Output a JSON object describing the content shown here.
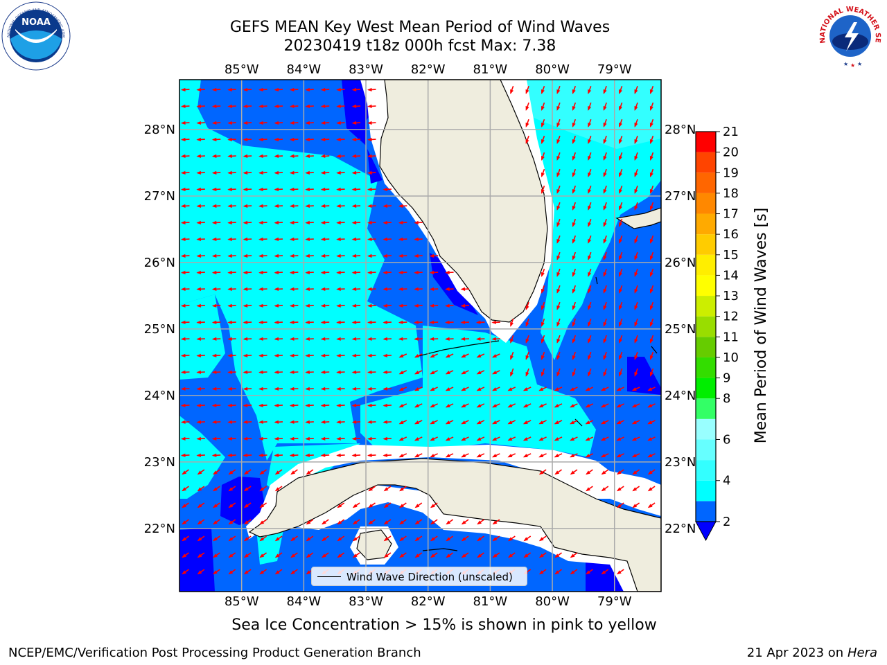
{
  "title": {
    "line1": "GEFS MEAN Key West Mean Period of Wind Waves",
    "line2": "20230419 t18z 000h fcst   Max: 7.38"
  },
  "logos": {
    "left": "NOAA",
    "left_ring": "NATIONAL OCEANIC AND ATMOSPHERIC ADMINISTRATION · U.S. DEPARTMENT OF COMMERCE",
    "right_ring": "NATIONAL WEATHER SERVICE"
  },
  "map": {
    "lon_range": [
      -86.0,
      -78.25
    ],
    "lat_range": [
      21.05,
      28.75
    ],
    "lon_ticks": [
      "85°W",
      "84°W",
      "83°W",
      "82°W",
      "81°W",
      "80°W",
      "79°W"
    ],
    "lat_ticks": [
      "22°N",
      "23°N",
      "24°N",
      "25°N",
      "26°N",
      "27°N",
      "28°N"
    ],
    "land_color": "#efedde",
    "grid": true,
    "arrow_color": "#ff0000",
    "legend_label": "Wind Wave Direction (unscaled)"
  },
  "colorbar": {
    "label": "Mean Period of Wind Waves [s]",
    "ticks": [
      "2",
      "4",
      "6",
      "8",
      "9",
      "10",
      "11",
      "12",
      "13",
      "14",
      "15",
      "16",
      "17",
      "18",
      "19",
      "20",
      "21"
    ],
    "colors": [
      "#0066ff",
      "#00ffff",
      "#33ffff",
      "#66ffff",
      "#99ffff",
      "#33ff66",
      "#00ee00",
      "#33dd00",
      "#66cc00",
      "#99dd00",
      "#ccee00",
      "#ffff00",
      "#ffee00",
      "#ffcc00",
      "#ffaa00",
      "#ff8800",
      "#ff6600",
      "#ff4400",
      "#ff0000"
    ],
    "extend_color": "#0000ff"
  },
  "chart_data": {
    "type": "heatmap",
    "title": "GEFS MEAN Key West Mean Period of Wind Waves",
    "subtitle": "20230419 t18z 000h fcst   Max: 7.38",
    "variable": "Mean Period of Wind Waves [s]",
    "max": 7.38,
    "bin_edges": [
      2,
      4,
      6,
      8,
      9,
      10,
      11,
      12,
      13,
      14,
      15,
      16,
      17,
      18,
      19,
      20,
      21
    ],
    "xlim": [
      -86.0,
      -78.25
    ],
    "ylim": [
      21.05,
      28.75
    ],
    "vectors": "Wind Wave Direction (unscaled)"
  },
  "notes": {
    "seaice": "Sea Ice Concentration > 15% is shown in pink to yellow",
    "footer_left": "NCEP/EMC/Verification Post Processing Product Generation Branch",
    "footer_date": "21 Apr 2023 on",
    "footer_host": "Hera"
  }
}
